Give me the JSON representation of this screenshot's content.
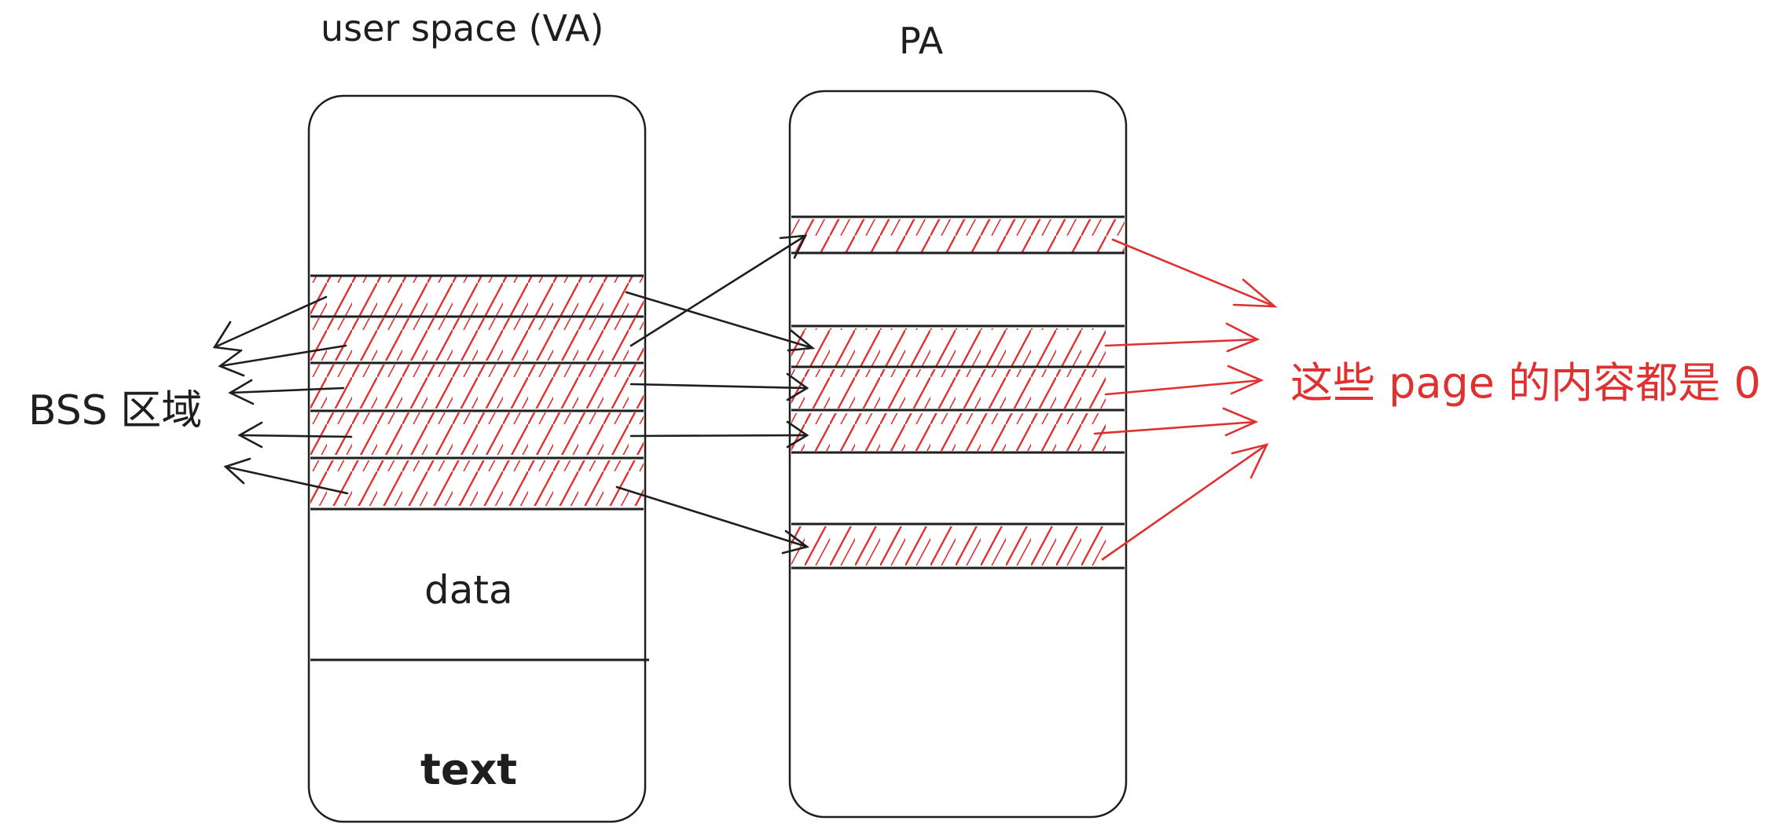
{
  "titles": {
    "virtual": "user space (VA)",
    "physical": "PA"
  },
  "virtual_segments": {
    "data": "data",
    "text": "text"
  },
  "labels": {
    "bss": "BSS 区域",
    "zero_pages": "这些 page 的内容都是 0"
  },
  "colors": {
    "ink": "#1e1e1e",
    "accent": "#e03131"
  }
}
